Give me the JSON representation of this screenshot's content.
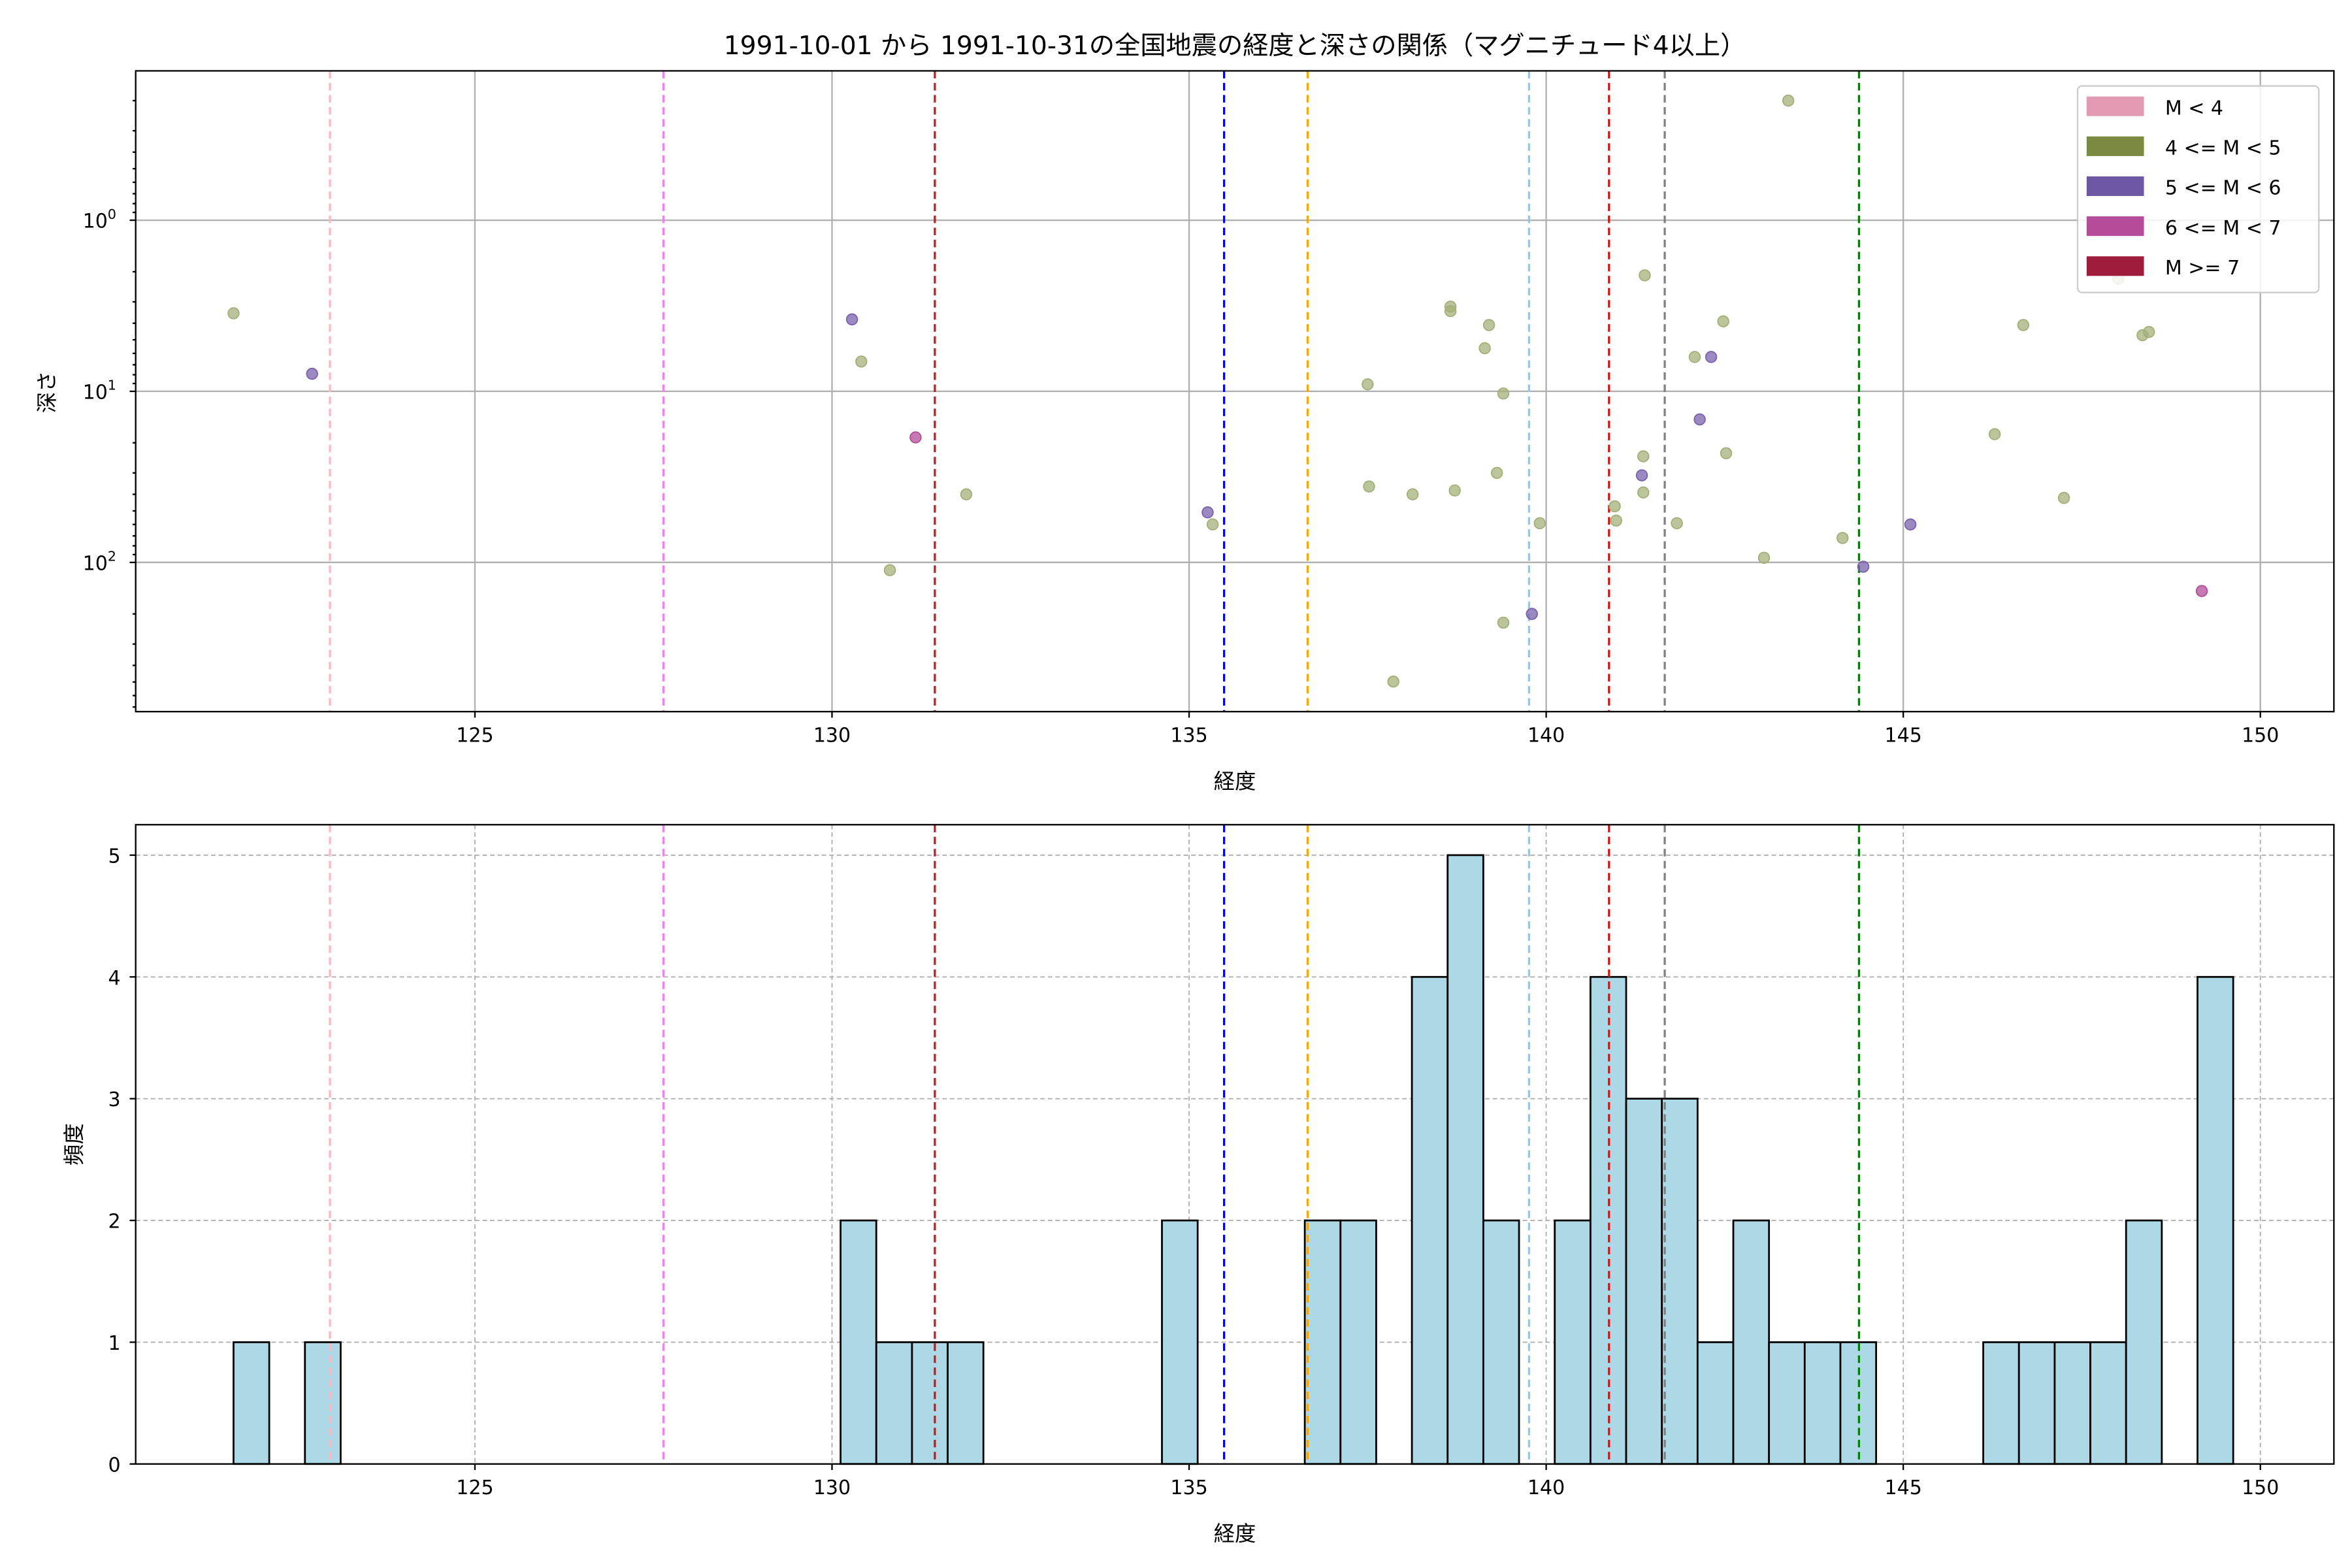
{
  "chart_data": [
    {
      "type": "scatter",
      "title": "1991-10-01 から 1991-10-31の全国地震の経度と深さの関係（マグニチュード4以上）",
      "xlabel": "経度",
      "ylabel": "深さ",
      "xlim": [
        120.25,
        151.03
      ],
      "ylim": [
        0.134,
        745
      ],
      "yscale": "log",
      "y_inverted": true,
      "grid": true,
      "xticks": [
        "125",
        "130",
        "135",
        "140",
        "145",
        "150"
      ],
      "yticks": [
        {
          "base": "10",
          "exp": "0",
          "value": 1
        },
        {
          "base": "10",
          "exp": "1",
          "value": 10
        },
        {
          "base": "10",
          "exp": "2",
          "value": 100
        }
      ],
      "legend": {
        "placement": "top-right",
        "entries": [
          {
            "label": "M < 4",
            "color": "#e39ab3"
          },
          {
            "label": "4 <= M < 5",
            "color": "#7a8a40"
          },
          {
            "label": "5 <= M < 6",
            "color": "#6f58a3"
          },
          {
            "label": "6 <= M < 7",
            "color": "#b44c9a"
          },
          {
            "label": "M >= 7",
            "color": "#a01c3c"
          }
        ]
      },
      "points": [
        {
          "lon": 121.62,
          "depth": 3.5,
          "cls": 1
        },
        {
          "lon": 122.72,
          "depth": 7.9,
          "cls": 2
        },
        {
          "lon": 130.28,
          "depth": 3.8,
          "cls": 2
        },
        {
          "lon": 130.41,
          "depth": 6.7,
          "cls": 1
        },
        {
          "lon": 131.17,
          "depth": 18.6,
          "cls": 3
        },
        {
          "lon": 131.88,
          "depth": 40,
          "cls": 1
        },
        {
          "lon": 130.81,
          "depth": 111,
          "cls": 1
        },
        {
          "lon": 135.26,
          "depth": 51,
          "cls": 2
        },
        {
          "lon": 135.33,
          "depth": 60,
          "cls": 1
        },
        {
          "lon": 137.5,
          "depth": 9.1,
          "cls": 1
        },
        {
          "lon": 137.52,
          "depth": 36,
          "cls": 1
        },
        {
          "lon": 138.13,
          "depth": 40,
          "cls": 1
        },
        {
          "lon": 138.66,
          "depth": 3.2,
          "cls": 1
        },
        {
          "lon": 138.66,
          "depth": 3.4,
          "cls": 1
        },
        {
          "lon": 138.72,
          "depth": 38,
          "cls": 1
        },
        {
          "lon": 139.14,
          "depth": 5.6,
          "cls": 1
        },
        {
          "lon": 139.2,
          "depth": 4.1,
          "cls": 1
        },
        {
          "lon": 139.31,
          "depth": 30,
          "cls": 1
        },
        {
          "lon": 139.4,
          "depth": 10.3,
          "cls": 1
        },
        {
          "lon": 139.4,
          "depth": 225,
          "cls": 1
        },
        {
          "lon": 137.86,
          "depth": 497,
          "cls": 1
        },
        {
          "lon": 139.8,
          "depth": 200,
          "cls": 2
        },
        {
          "lon": 139.91,
          "depth": 59,
          "cls": 1
        },
        {
          "lon": 140.96,
          "depth": 47,
          "cls": 1
        },
        {
          "lon": 140.98,
          "depth": 57,
          "cls": 1
        },
        {
          "lon": 141.36,
          "depth": 24,
          "cls": 1
        },
        {
          "lon": 141.34,
          "depth": 31,
          "cls": 2
        },
        {
          "lon": 141.36,
          "depth": 39,
          "cls": 1
        },
        {
          "lon": 141.38,
          "depth": 2.1,
          "cls": 1
        },
        {
          "lon": 141.83,
          "depth": 59,
          "cls": 1
        },
        {
          "lon": 142.08,
          "depth": 6.3,
          "cls": 1
        },
        {
          "lon": 142.31,
          "depth": 6.3,
          "cls": 2
        },
        {
          "lon": 142.15,
          "depth": 14.6,
          "cls": 2
        },
        {
          "lon": 142.48,
          "depth": 3.9,
          "cls": 1
        },
        {
          "lon": 142.52,
          "depth": 23,
          "cls": 1
        },
        {
          "lon": 143.05,
          "depth": 94,
          "cls": 1
        },
        {
          "lon": 143.39,
          "depth": 0.2,
          "cls": 1
        },
        {
          "lon": 144.15,
          "depth": 72,
          "cls": 1
        },
        {
          "lon": 144.44,
          "depth": 106,
          "cls": 2
        },
        {
          "lon": 145.1,
          "depth": 60,
          "cls": 2
        },
        {
          "lon": 146.28,
          "depth": 17.8,
          "cls": 1
        },
        {
          "lon": 146.68,
          "depth": 4.1,
          "cls": 1
        },
        {
          "lon": 147.25,
          "depth": 42,
          "cls": 1
        },
        {
          "lon": 148.01,
          "depth": 2.2,
          "cls": 1
        },
        {
          "lon": 148.35,
          "depth": 4.7,
          "cls": 1
        },
        {
          "lon": 148.44,
          "depth": 4.5,
          "cls": 1
        },
        {
          "lon": 149.18,
          "depth": 147,
          "cls": 3
        }
      ],
      "point_colors": [
        "#e39ab3",
        "#a4b07a",
        "#7a62ad",
        "#b44c9a",
        "#a01c3c"
      ],
      "reference_lines": [
        {
          "lon": 122.97,
          "color": "#ffb6c1"
        },
        {
          "lon": 127.64,
          "color": "#ee82ee"
        },
        {
          "lon": 131.44,
          "color": "#b22222"
        },
        {
          "lon": 135.49,
          "color": "#0000ff"
        },
        {
          "lon": 136.66,
          "color": "#ffa500"
        },
        {
          "lon": 139.76,
          "color": "#87ceeb"
        },
        {
          "lon": 140.88,
          "color": "#ff0000"
        },
        {
          "lon": 141.66,
          "color": "#808080"
        },
        {
          "lon": 144.38,
          "color": "#008000"
        }
      ]
    },
    {
      "type": "bar",
      "subtype": "histogram",
      "xlabel": "経度",
      "ylabel": "頻度",
      "xlim": [
        120.25,
        151.03
      ],
      "ylim": [
        0,
        5.25
      ],
      "grid": true,
      "xticks": [
        "125",
        "130",
        "135",
        "140",
        "145",
        "150"
      ],
      "yticks": [
        "0",
        "1",
        "2",
        "3",
        "4",
        "5"
      ],
      "bin_start": 121.62,
      "bin_width": 0.5,
      "counts": [
        1,
        0,
        1,
        0,
        0,
        0,
        0,
        0,
        0,
        0,
        0,
        0,
        0,
        0,
        0,
        0,
        0,
        2,
        1,
        1,
        1,
        0,
        0,
        0,
        0,
        0,
        2,
        0,
        0,
        0,
        2,
        2,
        0,
        4,
        5,
        2,
        0,
        2,
        4,
        3,
        3,
        1,
        2,
        1,
        1,
        1,
        0,
        0,
        0,
        1,
        1,
        1,
        1,
        2,
        0,
        4
      ],
      "bar_color": "#add8e6",
      "edge_color": "#000000"
    }
  ]
}
